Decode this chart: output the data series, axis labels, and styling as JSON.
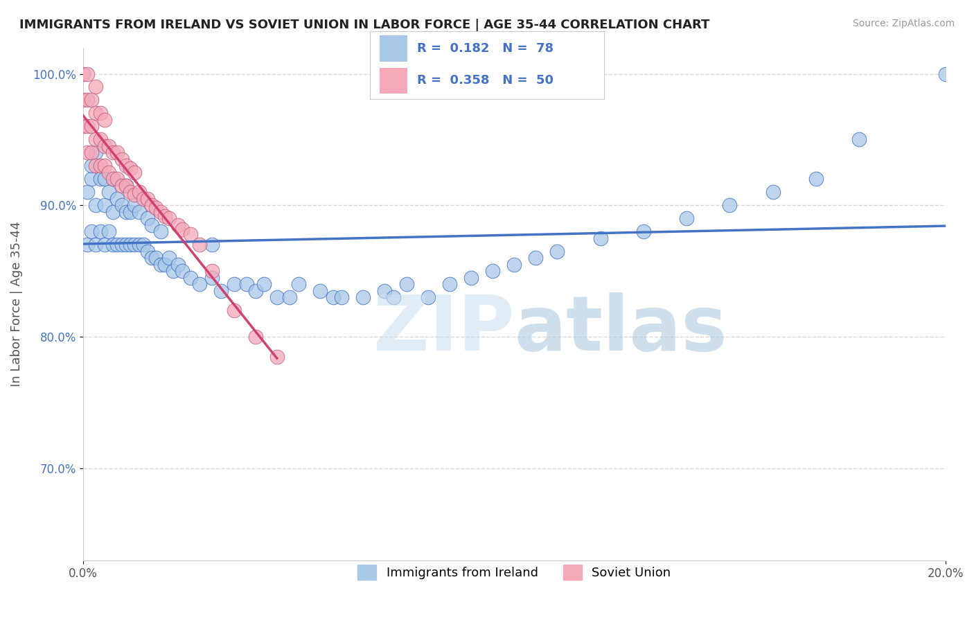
{
  "title": "IMMIGRANTS FROM IRELAND VS SOVIET UNION IN LABOR FORCE | AGE 35-44 CORRELATION CHART",
  "source": "Source: ZipAtlas.com",
  "ylabel": "In Labor Force | Age 35-44",
  "xlim": [
    0.0,
    0.2
  ],
  "ylim": [
    0.63,
    1.02
  ],
  "yticks": [
    0.7,
    0.8,
    0.9,
    1.0
  ],
  "yticklabels": [
    "70.0%",
    "80.0%",
    "90.0%",
    "100.0%"
  ],
  "ireland_R": 0.182,
  "ireland_N": 78,
  "soviet_R": 0.358,
  "soviet_N": 50,
  "ireland_color": "#a8c8e8",
  "soviet_color": "#f4a8b8",
  "ireland_line_color": "#4472c4",
  "soviet_line_color": "#d04070",
  "grid_color": "#d8d8d8",
  "background_color": "#ffffff",
  "ireland_x": [
    0.001,
    0.001,
    0.002,
    0.002,
    0.002,
    0.003,
    0.003,
    0.003,
    0.004,
    0.004,
    0.005,
    0.005,
    0.005,
    0.006,
    0.006,
    0.007,
    0.007,
    0.007,
    0.008,
    0.008,
    0.009,
    0.009,
    0.01,
    0.01,
    0.01,
    0.011,
    0.011,
    0.012,
    0.012,
    0.013,
    0.013,
    0.014,
    0.015,
    0.015,
    0.016,
    0.016,
    0.017,
    0.018,
    0.018,
    0.019,
    0.02,
    0.021,
    0.022,
    0.023,
    0.025,
    0.027,
    0.03,
    0.03,
    0.032,
    0.035,
    0.038,
    0.04,
    0.042,
    0.045,
    0.048,
    0.05,
    0.055,
    0.058,
    0.06,
    0.065,
    0.07,
    0.072,
    0.075,
    0.08,
    0.085,
    0.09,
    0.095,
    0.1,
    0.105,
    0.11,
    0.12,
    0.13,
    0.14,
    0.15,
    0.16,
    0.17,
    0.18,
    0.2
  ],
  "ireland_y": [
    0.87,
    0.91,
    0.88,
    0.92,
    0.93,
    0.87,
    0.9,
    0.94,
    0.88,
    0.92,
    0.87,
    0.9,
    0.92,
    0.88,
    0.91,
    0.87,
    0.895,
    0.92,
    0.87,
    0.905,
    0.87,
    0.9,
    0.87,
    0.895,
    0.915,
    0.87,
    0.895,
    0.87,
    0.9,
    0.87,
    0.895,
    0.87,
    0.865,
    0.89,
    0.86,
    0.885,
    0.86,
    0.855,
    0.88,
    0.855,
    0.86,
    0.85,
    0.855,
    0.85,
    0.845,
    0.84,
    0.845,
    0.87,
    0.835,
    0.84,
    0.84,
    0.835,
    0.84,
    0.83,
    0.83,
    0.84,
    0.835,
    0.83,
    0.83,
    0.83,
    0.835,
    0.83,
    0.84,
    0.83,
    0.84,
    0.845,
    0.85,
    0.855,
    0.86,
    0.865,
    0.875,
    0.88,
    0.89,
    0.9,
    0.91,
    0.92,
    0.95,
    1.0
  ],
  "soviet_x": [
    0.0,
    0.0,
    0.0,
    0.001,
    0.001,
    0.001,
    0.001,
    0.002,
    0.002,
    0.002,
    0.003,
    0.003,
    0.003,
    0.003,
    0.004,
    0.004,
    0.004,
    0.005,
    0.005,
    0.005,
    0.006,
    0.006,
    0.007,
    0.007,
    0.008,
    0.008,
    0.009,
    0.009,
    0.01,
    0.01,
    0.011,
    0.011,
    0.012,
    0.012,
    0.013,
    0.014,
    0.015,
    0.016,
    0.017,
    0.018,
    0.019,
    0.02,
    0.022,
    0.023,
    0.025,
    0.027,
    0.03,
    0.035,
    0.04,
    0.045
  ],
  "soviet_y": [
    0.96,
    0.98,
    1.0,
    0.94,
    0.96,
    0.98,
    1.0,
    0.94,
    0.96,
    0.98,
    0.93,
    0.95,
    0.97,
    0.99,
    0.93,
    0.95,
    0.97,
    0.93,
    0.945,
    0.965,
    0.925,
    0.945,
    0.92,
    0.94,
    0.92,
    0.94,
    0.915,
    0.935,
    0.915,
    0.93,
    0.91,
    0.928,
    0.908,
    0.925,
    0.91,
    0.905,
    0.905,
    0.9,
    0.898,
    0.895,
    0.892,
    0.89,
    0.885,
    0.882,
    0.878,
    0.87,
    0.85,
    0.82,
    0.8,
    0.785
  ]
}
